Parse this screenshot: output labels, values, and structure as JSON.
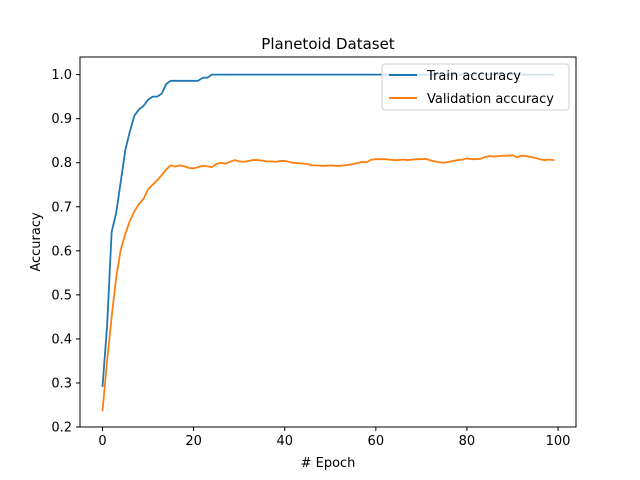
{
  "chart_data": {
    "type": "line",
    "title": "Planetoid Dataset",
    "xlabel": "# Epoch",
    "ylabel": "Accuracy",
    "xlim": [
      -4.95,
      103.95
    ],
    "ylim": [
      0.2,
      1.04
    ],
    "xticks": [
      0,
      20,
      40,
      60,
      80,
      100
    ],
    "yticks": [
      0.2,
      0.3,
      0.4,
      0.5,
      0.6,
      0.7,
      0.8,
      0.9,
      1.0
    ],
    "xtick_labels": [
      "0",
      "20",
      "40",
      "60",
      "80",
      "100"
    ],
    "ytick_labels": [
      "0.2",
      "0.3",
      "0.4",
      "0.5",
      "0.6",
      "0.7",
      "0.8",
      "0.9",
      "1.0"
    ],
    "legend_position": "top-right",
    "grid": false,
    "series": [
      {
        "name": "Train accuracy",
        "color": "#1f77b4",
        "x": [
          0,
          1,
          2,
          3,
          4,
          5,
          6,
          7,
          8,
          9,
          10,
          11,
          12,
          13,
          14,
          15,
          16,
          17,
          18,
          19,
          20,
          21,
          22,
          23,
          24,
          25,
          26,
          27,
          28,
          29,
          30,
          31,
          32,
          33,
          34,
          35,
          36,
          37,
          38,
          39,
          40,
          41,
          42,
          43,
          44,
          45,
          46,
          47,
          48,
          49,
          50,
          51,
          52,
          53,
          54,
          55,
          56,
          57,
          58,
          59,
          60,
          61,
          62,
          63,
          64,
          65,
          66,
          67,
          68,
          69,
          70,
          71,
          72,
          73,
          74,
          75,
          76,
          77,
          78,
          79,
          80,
          81,
          82,
          83,
          84,
          85,
          86,
          87,
          88,
          89,
          90,
          91,
          92,
          93,
          94,
          95,
          96,
          97,
          98,
          99
        ],
        "values": [
          0.293,
          0.43,
          0.643,
          0.686,
          0.757,
          0.829,
          0.871,
          0.907,
          0.921,
          0.929,
          0.943,
          0.95,
          0.95,
          0.957,
          0.979,
          0.986,
          0.986,
          0.986,
          0.986,
          0.986,
          0.986,
          0.986,
          0.993,
          0.993,
          1.0,
          1.0,
          1.0,
          1.0,
          1.0,
          1.0,
          1.0,
          1.0,
          1.0,
          1.0,
          1.0,
          1.0,
          1.0,
          1.0,
          1.0,
          1.0,
          1.0,
          1.0,
          1.0,
          1.0,
          1.0,
          1.0,
          1.0,
          1.0,
          1.0,
          1.0,
          1.0,
          1.0,
          1.0,
          1.0,
          1.0,
          1.0,
          1.0,
          1.0,
          1.0,
          1.0,
          1.0,
          1.0,
          1.0,
          1.0,
          1.0,
          1.0,
          1.0,
          1.0,
          1.0,
          1.0,
          1.0,
          1.0,
          1.0,
          1.0,
          1.0,
          1.0,
          1.0,
          1.0,
          1.0,
          1.0,
          1.0,
          1.0,
          1.0,
          1.0,
          1.0,
          1.0,
          1.0,
          1.0,
          1.0,
          1.0,
          1.0,
          1.0,
          1.0,
          1.0,
          1.0,
          1.0,
          1.0,
          1.0,
          1.0,
          1.0
        ]
      },
      {
        "name": "Validation accuracy",
        "color": "#ff7f0e",
        "x": [
          0,
          1,
          2,
          3,
          4,
          5,
          6,
          7,
          8,
          9,
          10,
          11,
          12,
          13,
          14,
          15,
          16,
          17,
          18,
          19,
          20,
          21,
          22,
          23,
          24,
          25,
          26,
          27,
          28,
          29,
          30,
          31,
          32,
          33,
          34,
          35,
          36,
          37,
          38,
          39,
          40,
          41,
          42,
          43,
          44,
          45,
          46,
          47,
          48,
          49,
          50,
          51,
          52,
          53,
          54,
          55,
          56,
          57,
          58,
          59,
          60,
          61,
          62,
          63,
          64,
          65,
          66,
          67,
          68,
          69,
          70,
          71,
          72,
          73,
          74,
          75,
          76,
          77,
          78,
          79,
          80,
          81,
          82,
          83,
          84,
          85,
          86,
          87,
          88,
          89,
          90,
          91,
          92,
          93,
          94,
          95,
          96,
          97,
          98,
          99
        ],
        "values": [
          0.238,
          0.35,
          0.45,
          0.54,
          0.603,
          0.638,
          0.668,
          0.69,
          0.706,
          0.718,
          0.74,
          0.75,
          0.76,
          0.772,
          0.785,
          0.794,
          0.791,
          0.794,
          0.792,
          0.788,
          0.787,
          0.79,
          0.793,
          0.792,
          0.79,
          0.797,
          0.8,
          0.798,
          0.802,
          0.806,
          0.803,
          0.802,
          0.804,
          0.806,
          0.806,
          0.805,
          0.803,
          0.803,
          0.802,
          0.804,
          0.804,
          0.802,
          0.799,
          0.799,
          0.798,
          0.797,
          0.794,
          0.794,
          0.793,
          0.793,
          0.794,
          0.793,
          0.793,
          0.794,
          0.795,
          0.797,
          0.799,
          0.802,
          0.801,
          0.807,
          0.808,
          0.808,
          0.808,
          0.807,
          0.806,
          0.806,
          0.807,
          0.806,
          0.807,
          0.808,
          0.808,
          0.809,
          0.805,
          0.803,
          0.801,
          0.8,
          0.802,
          0.804,
          0.806,
          0.807,
          0.81,
          0.808,
          0.808,
          0.809,
          0.813,
          0.815,
          0.814,
          0.815,
          0.816,
          0.816,
          0.817,
          0.812,
          0.816,
          0.815,
          0.813,
          0.811,
          0.808,
          0.806,
          0.807,
          0.806
        ]
      }
    ]
  }
}
